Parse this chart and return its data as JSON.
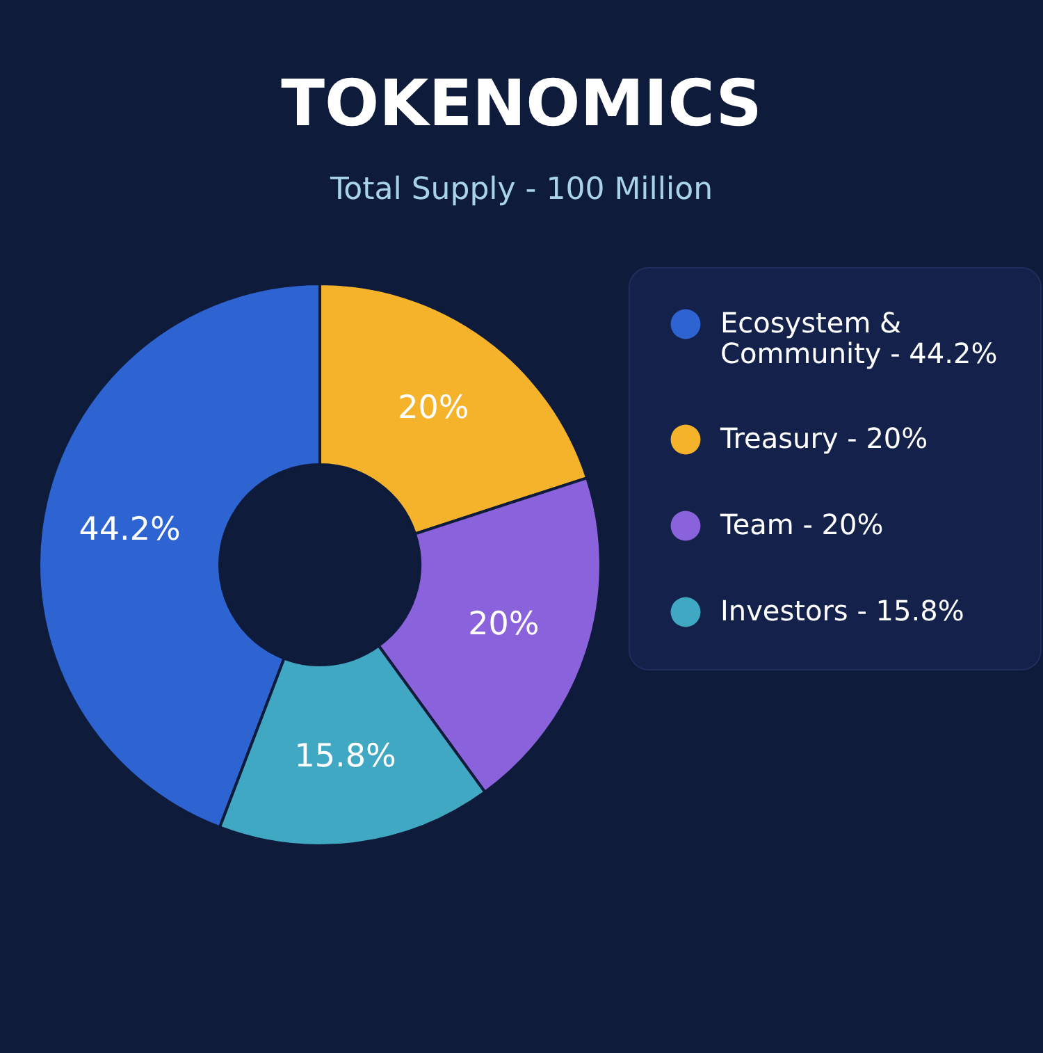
{
  "chart_data": {
    "type": "donut",
    "title": "TOKENOMICS",
    "subtitle": "Total Supply - 100 Million",
    "categories": [
      "Ecosystem & Community",
      "Treasury",
      "Team",
      "Investors"
    ],
    "values": [
      44.2,
      20,
      20,
      15.8
    ],
    "colors": [
      "#2e64d2",
      "#f4b32b",
      "#8a62dc",
      "#41a8c4"
    ],
    "value_labels": [
      "44.2%",
      "20%",
      "20%",
      "15.8%"
    ],
    "legend": "right"
  }
}
